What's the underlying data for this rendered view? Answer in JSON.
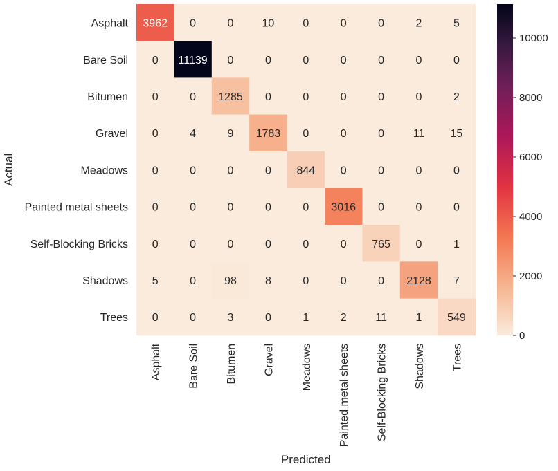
{
  "chart_data": {
    "type": "heatmap",
    "title": "",
    "xlabel": "Predicted",
    "ylabel": "Actual",
    "x_categories": [
      "Asphalt",
      "Bare Soil",
      "Bitumen",
      "Gravel",
      "Meadows",
      "Painted metal sheets",
      "Self-Blocking Bricks",
      "Shadows",
      "Trees"
    ],
    "y_categories": [
      "Asphalt",
      "Bare Soil",
      "Bitumen",
      "Gravel",
      "Meadows",
      "Painted metal sheets",
      "Self-Blocking Bricks",
      "Shadows",
      "Trees"
    ],
    "values": [
      [
        3962,
        0,
        0,
        10,
        0,
        0,
        0,
        2,
        5
      ],
      [
        0,
        11139,
        0,
        0,
        0,
        0,
        0,
        0,
        0
      ],
      [
        0,
        0,
        1285,
        0,
        0,
        0,
        0,
        0,
        2
      ],
      [
        0,
        4,
        9,
        1783,
        0,
        0,
        0,
        11,
        15
      ],
      [
        0,
        0,
        0,
        0,
        844,
        0,
        0,
        0,
        0
      ],
      [
        0,
        0,
        0,
        0,
        0,
        3016,
        0,
        0,
        0
      ],
      [
        0,
        0,
        0,
        0,
        0,
        0,
        765,
        0,
        1
      ],
      [
        5,
        0,
        98,
        8,
        0,
        0,
        0,
        2128,
        7
      ],
      [
        0,
        0,
        3,
        0,
        1,
        2,
        11,
        1,
        549
      ]
    ],
    "colorbar": {
      "min": 0,
      "max": 11139,
      "ticks": [
        0,
        2000,
        4000,
        6000,
        8000,
        10000
      ],
      "colormap": "rocket_r"
    }
  }
}
